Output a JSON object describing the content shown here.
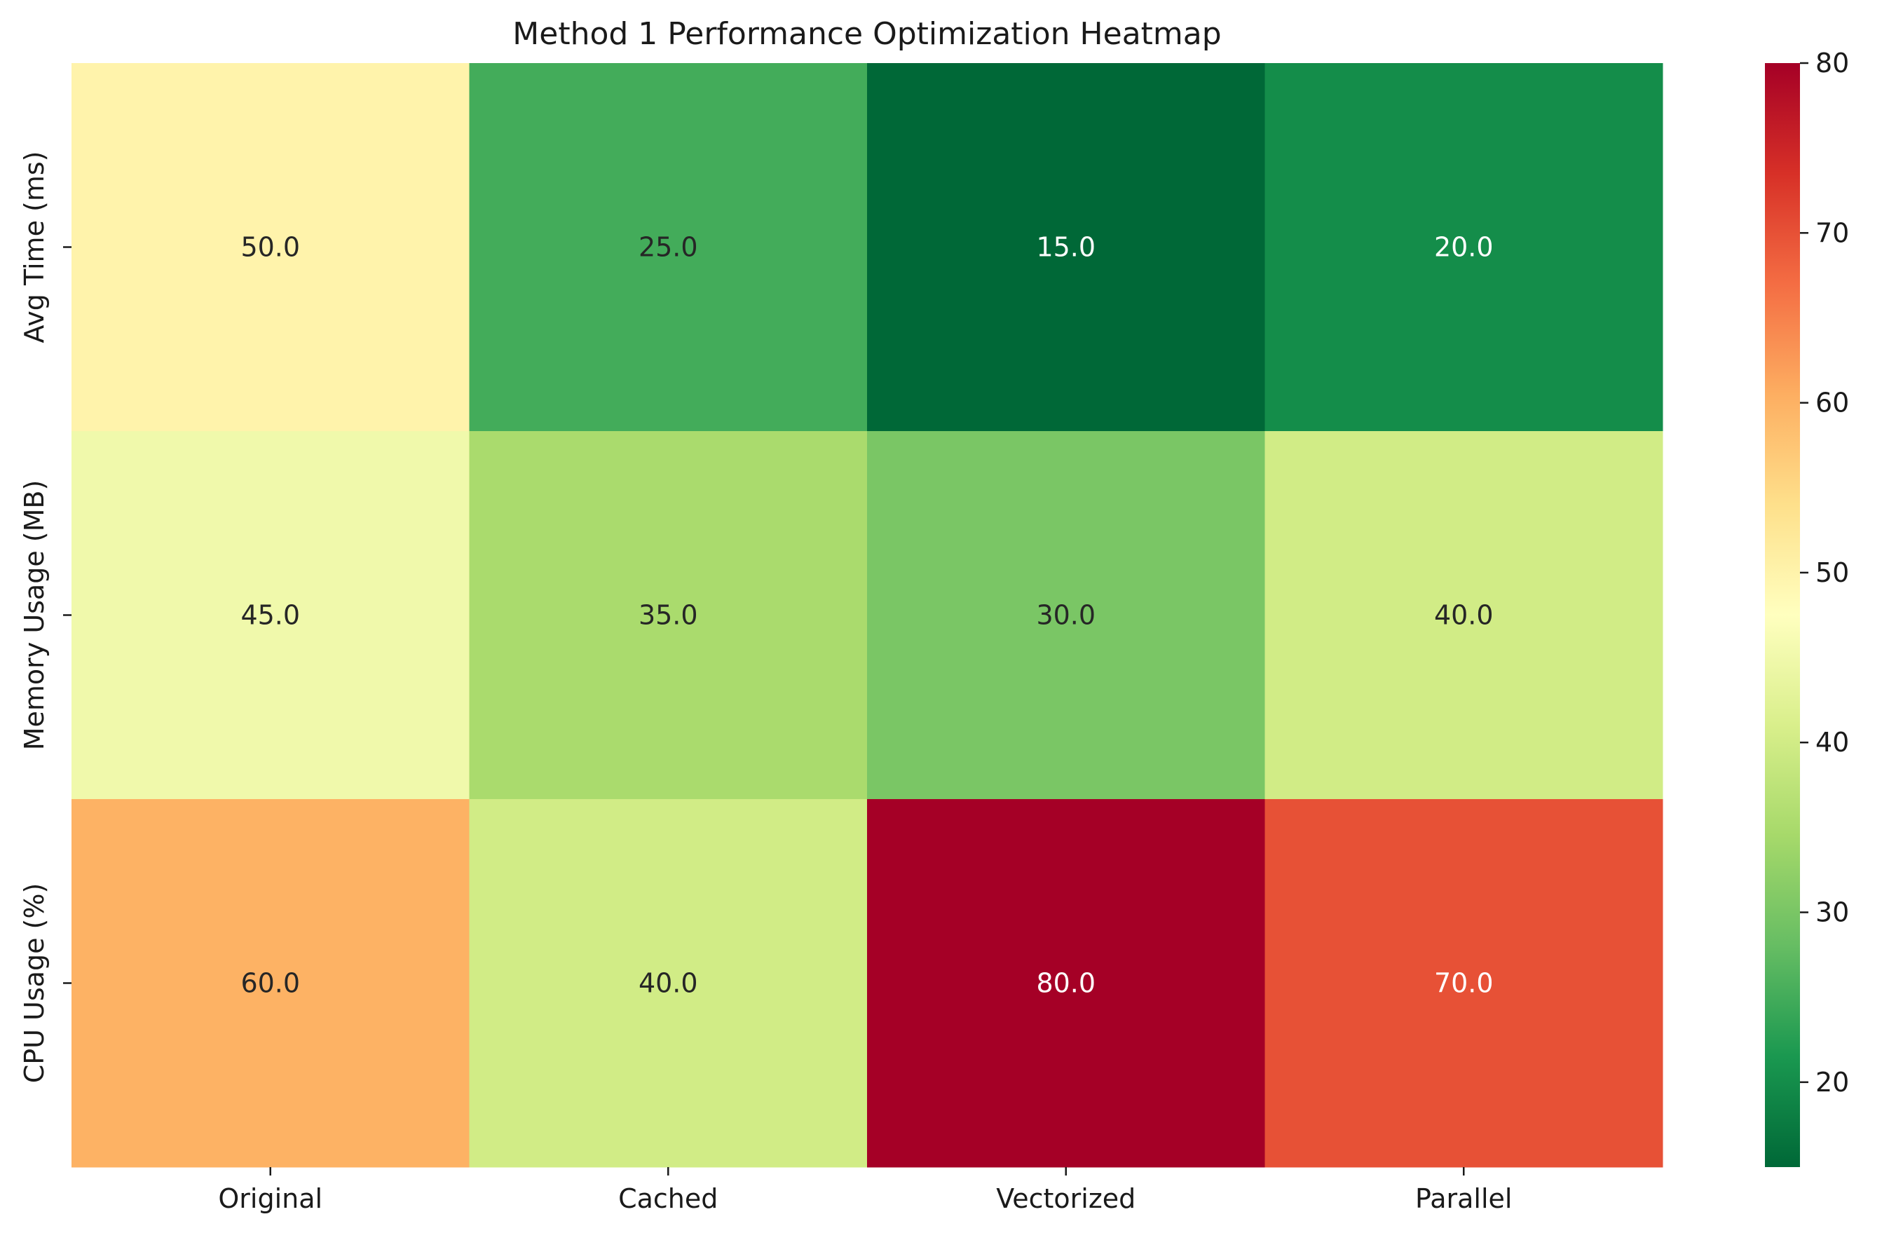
{
  "chart_data": {
    "type": "heatmap",
    "title": "Method 1 Performance Optimization Heatmap",
    "columns": [
      "Original",
      "Cached",
      "Vectorized",
      "Parallel"
    ],
    "rows": [
      "Avg Time (ms)",
      "Memory Usage (MB)",
      "CPU Usage (%)"
    ],
    "values": [
      [
        50.0,
        25.0,
        15.0,
        20.0
      ],
      [
        45.0,
        35.0,
        30.0,
        40.0
      ],
      [
        60.0,
        40.0,
        80.0,
        70.0
      ]
    ],
    "value_labels": [
      [
        "50.0",
        "25.0",
        "15.0",
        "20.0"
      ],
      [
        "45.0",
        "35.0",
        "30.0",
        "40.0"
      ],
      [
        "60.0",
        "40.0",
        "80.0",
        "70.0"
      ]
    ],
    "colormap": "RdYlGn_r",
    "vmin": 15,
    "vmax": 80,
    "colorbar_ticks": [
      20,
      30,
      40,
      50,
      60,
      70,
      80
    ],
    "colorbar_tick_labels": [
      "20",
      "30",
      "40",
      "50",
      "60",
      "70",
      "80"
    ],
    "xlabel": "",
    "ylabel": ""
  }
}
